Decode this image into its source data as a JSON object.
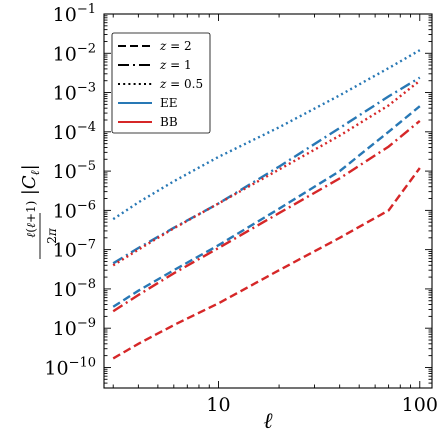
{
  "chart_data": {
    "type": "line",
    "xlabel": "ℓ",
    "ylabel": "ℓ(ℓ+1)/2π |Cℓ|",
    "xscale": "log",
    "yscale": "log",
    "xlim": [
      2.7,
      115
    ],
    "ylim": [
      3e-11,
      0.1
    ],
    "xticks": [
      10,
      100
    ],
    "xtick_labels": [
      "10",
      "100"
    ],
    "yticks": [
      1e-10,
      1e-09,
      1e-08,
      1e-07,
      1e-06,
      1e-05,
      0.0001,
      0.001,
      0.01,
      0.1
    ],
    "ytick_exponents": [
      "−10",
      "−9",
      "−8",
      "−7",
      "−6",
      "−5",
      "−4",
      "−3",
      "−2",
      "−1"
    ],
    "ytick_base": "10",
    "grid": false,
    "legend_position": "top-left",
    "legend": [
      {
        "label": "z = 2",
        "var": "z",
        "rest": " = 2",
        "style": "dashed",
        "color": "#000000"
      },
      {
        "label": "z = 1",
        "var": "z",
        "rest": " = 1",
        "style": "dashdot",
        "color": "#000000"
      },
      {
        "label": "z = 0.5",
        "var": "z",
        "rest": " = 0.5",
        "style": "dotted",
        "color": "#000000"
      },
      {
        "label": "EE",
        "style": "solid",
        "color": "#2878b5"
      },
      {
        "label": "BB",
        "style": "solid",
        "color": "#d62728"
      }
    ],
    "series": [
      {
        "spectrum": "EE",
        "z": "0.5",
        "style": "dotted",
        "color": "#2878b5",
        "x": [
          3,
          4,
          6,
          10,
          20,
          40,
          70,
          100
        ],
        "y": [
          6e-07,
          1.6e-06,
          5.5e-06,
          2.3e-05,
          0.00013,
          0.00085,
          0.0042,
          0.012
        ]
      },
      {
        "spectrum": "EE",
        "z": "1",
        "style": "dashdot",
        "color": "#2878b5",
        "x": [
          3,
          4,
          6,
          10,
          20,
          40,
          70,
          100
        ],
        "y": [
          4.5e-08,
          1.1e-07,
          3.6e-07,
          1.5e-06,
          1.3e-05,
          0.000125,
          0.0008,
          0.0024
        ]
      },
      {
        "spectrum": "BB",
        "z": "0.5",
        "style": "dotted",
        "color": "#d62728",
        "x": [
          3,
          4,
          6,
          10,
          20,
          40,
          70,
          100
        ],
        "y": [
          4e-08,
          1e-07,
          3.5e-07,
          1.5e-06,
          1.1e-05,
          8e-05,
          0.00047,
          0.002
        ]
      },
      {
        "spectrum": "EE",
        "z": "2",
        "style": "dashed",
        "color": "#2878b5",
        "x": [
          3,
          4,
          6,
          10,
          20,
          40,
          70,
          100
        ],
        "y": [
          3.5e-09,
          9e-09,
          3e-08,
          1.3e-07,
          1.1e-06,
          1e-05,
          0.0001,
          0.00045
        ]
      },
      {
        "spectrum": "BB",
        "z": "1",
        "style": "dashdot",
        "color": "#d62728",
        "x": [
          3,
          4,
          6,
          10,
          20,
          40,
          70,
          100
        ],
        "y": [
          2.7e-09,
          7e-09,
          2.5e-08,
          1.1e-07,
          8.5e-07,
          6.5e-06,
          4.2e-05,
          0.00019
        ]
      },
      {
        "spectrum": "BB",
        "z": "2",
        "style": "dashed",
        "color": "#d62728",
        "x": [
          3,
          4,
          6,
          10,
          20,
          40,
          70,
          100
        ],
        "y": [
          1.7e-10,
          4e-10,
          1.2e-09,
          4.3e-09,
          3e-08,
          2e-07,
          1e-06,
          1.2e-05
        ]
      }
    ]
  }
}
